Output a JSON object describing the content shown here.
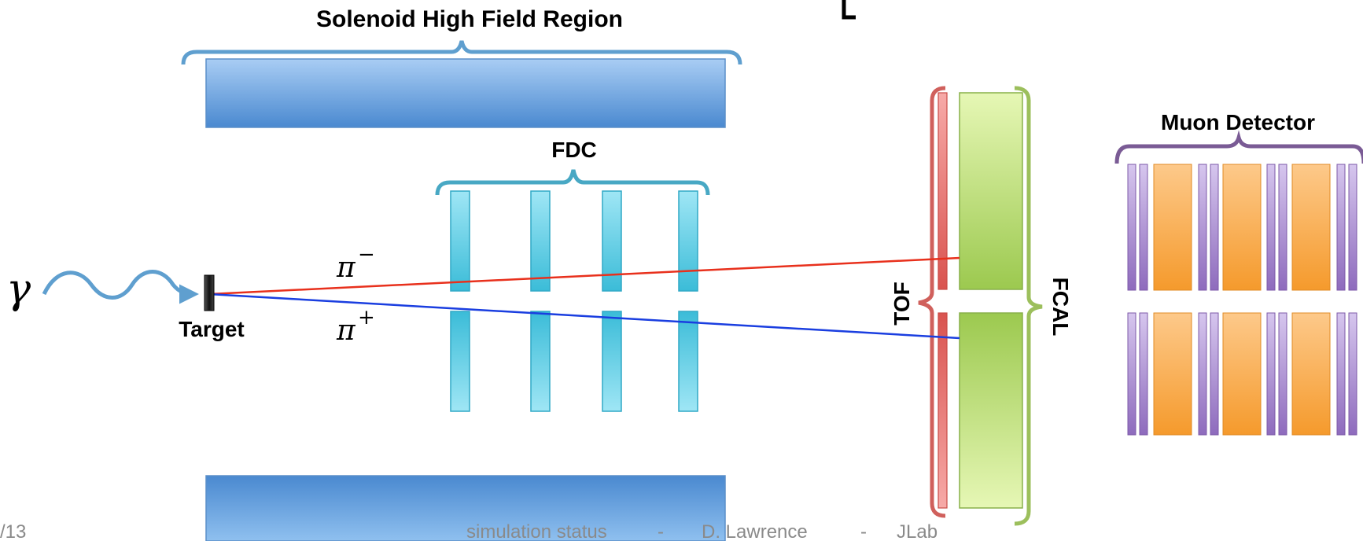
{
  "labels": {
    "solenoid": "Solenoid High Field Region",
    "fdc": "FDC",
    "muon": "Muon Detector",
    "tof": "TOF",
    "fcal": "FCAL",
    "target": "Target",
    "photon": "γ",
    "pi_minus": "π",
    "pi_minus_sup": "−",
    "pi_plus": "π",
    "pi_plus_sup": "+"
  },
  "footer": {
    "page": "/13",
    "title": "simulation status",
    "sep1": "-",
    "author": "D. Lawrence",
    "sep2": "-",
    "org": "JLab"
  },
  "colors": {
    "solenoid_blue": "#5b9bd5",
    "fdc_cyan": "#4bc4de",
    "tof_red": "#d9534f",
    "fcal_green": "#9ec85a",
    "muon_purple": "#9775c2",
    "muon_orange": "#f9a33c",
    "track_minus": "#e8301c",
    "track_plus": "#1a3ee0",
    "bracket_blue": "#5f9fcf",
    "bracket_teal": "#48a8c4",
    "bracket_red": "#d0605c",
    "bracket_green": "#9cbf5c",
    "bracket_purple": "#7a5b95"
  }
}
